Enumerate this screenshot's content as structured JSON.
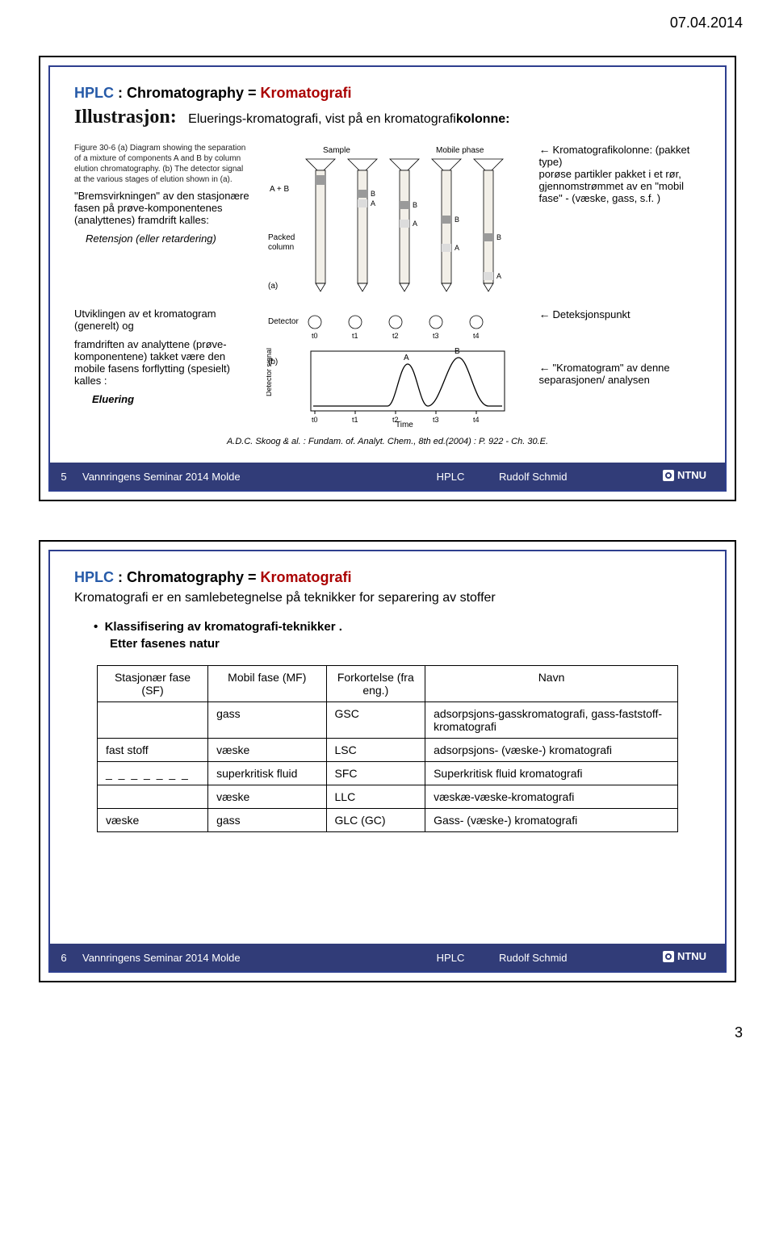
{
  "page": {
    "date": "07.04.2014",
    "page_number": "3"
  },
  "footer": {
    "seminar": "Vannringens Seminar 2014  Molde",
    "hplc": "HPLC",
    "author": "Rudolf Schmid",
    "ntnu": "NTNU"
  },
  "colors": {
    "footer_bg": "#313c78",
    "red": "#a00000",
    "blue": "#265aa8",
    "border": "#2e3f8f"
  },
  "slide1": {
    "num": "5",
    "title_prefix": "HPLC",
    "title_sep": ":  Chromatography   =   ",
    "title_red": "Kromatografi",
    "illus_label": "Illustrasjon:",
    "illus_text_a": "Eluerings-kromatografi, vist på en kromatografi",
    "illus_text_b": "kolonne:",
    "figcap": "Figure 30-6   (a) Diagram showing the separation of a mixture of components A and B by column elution chromatography. (b) The detector signal at the various stages of elution shown in (a).",
    "left1a": "\"Bremsvirkningen\" av den stasjonære fasen på prøve-komponentenes (analyttenes) framdrift kalles:",
    "left1b": "Retensjon (eller retardering)",
    "left2a": "Utviklingen av et kromatogram (generelt)  og",
    "left2b": "framdriften av analyttene (prøve-komponentene) takket være den mobile fasens forflytting (spesielt) kalles :",
    "left2c": "Eluering",
    "right1": "Kromatografikolonne: (pakket type)\nporøse partikler pakket i et rør,\ngjennomstrømmet av en \"mobil fase\"  - (væske, gass, s.f. )",
    "right2": "Deteksjonspunkt",
    "right3": "\"Kromatogram\"  av denne separasjonen/ analysen",
    "ref": "A.D.C. Skoog & al. : Fundam. of. Analyt. Chem., 8th ed.(2004) :  P. 922  -  Ch. 30.E.",
    "diagram": {
      "top_labels": [
        "Sample",
        "Mobile phase"
      ],
      "packed_label": "Packed column",
      "a_label": "(a)",
      "b_label": "(b)",
      "det_label": "Detector",
      "sig_label": "Detector signal",
      "time_label": "Time",
      "ab_label_top": "A + B",
      "marks": [
        "B",
        "A",
        "B",
        "A",
        "B",
        "A"
      ],
      "curve_labels": [
        "A",
        "B"
      ],
      "tticks": [
        "t0",
        "t1",
        "t2",
        "t3",
        "t4"
      ],
      "column_fill": "#f2efe8",
      "bandA": "#dcdcdc",
      "bandB": "#9a9a9a",
      "axis": "#000"
    }
  },
  "slide2": {
    "num": "6",
    "title_prefix": "HPLC",
    "title_sep": " :   Chromatography   =   ",
    "title_red": "Kromatografi",
    "subtitle": "Kromatografi er en samlebetegnelse på teknikker for separering av stoffer",
    "bullet1": "Klassifisering av kromatografi-teknikker .",
    "bullet2": "Etter fasenes natur",
    "table": {
      "headers": [
        "Stasjonær fase (SF)",
        "Mobil fase (MF)",
        "Forkortelse (fra eng.)",
        "Navn"
      ],
      "rows": [
        [
          "",
          "gass",
          "GSC",
          "adsorpsjons-gasskromatografi, gass-faststoff-kromatografi"
        ],
        [
          "fast stoff",
          "væske",
          "LSC",
          "adsorpsjons- (væske-) kromatografi"
        ],
        [
          "_ _ _ _ _ _ _",
          "superkritisk fluid",
          "SFC",
          "Superkritisk fluid kromatografi"
        ],
        [
          "",
          "væske",
          "LLC",
          "væskæ-væske-kromatografi"
        ],
        [
          "væske",
          "gass",
          "GLC (GC)",
          "Gass- (væske-) kromatografi"
        ]
      ],
      "col_widths": [
        "130px",
        "140px",
        "110px",
        "340px"
      ]
    }
  }
}
